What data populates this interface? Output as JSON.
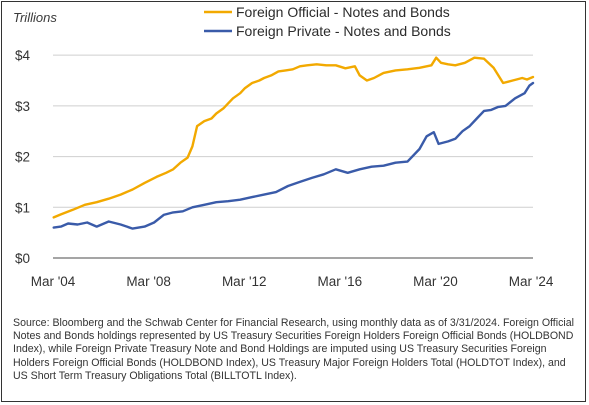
{
  "chart_data": {
    "type": "line",
    "ylabel": "Trillions",
    "ylim": [
      0,
      4.2
    ],
    "y_ticks": [
      {
        "value": 0,
        "label": "$0"
      },
      {
        "value": 1,
        "label": "$1"
      },
      {
        "value": 2,
        "label": "$2"
      },
      {
        "value": 3,
        "label": "$3"
      },
      {
        "value": 4,
        "label": "$4"
      }
    ],
    "xlim": [
      2004.17,
      2024.25
    ],
    "x_ticks": [
      {
        "value": 2004.17,
        "label": "Mar '04"
      },
      {
        "value": 2008.17,
        "label": "Mar '08"
      },
      {
        "value": 2012.17,
        "label": "Mar '12"
      },
      {
        "value": 2016.17,
        "label": "Mar '16"
      },
      {
        "value": 2020.17,
        "label": "Mar '20"
      },
      {
        "value": 2024.17,
        "label": "Mar '24"
      }
    ],
    "grid": "horizontal",
    "legend_position": "top",
    "series": [
      {
        "name": "Foreign Official - Notes and Bonds",
        "color": "#f2a900",
        "points": [
          [
            2004.2,
            0.8
          ],
          [
            2004.5,
            0.86
          ],
          [
            2005.0,
            0.95
          ],
          [
            2005.5,
            1.05
          ],
          [
            2006.0,
            1.1
          ],
          [
            2006.5,
            1.17
          ],
          [
            2007.0,
            1.25
          ],
          [
            2007.5,
            1.35
          ],
          [
            2008.0,
            1.48
          ],
          [
            2008.5,
            1.6
          ],
          [
            2008.9,
            1.68
          ],
          [
            2009.2,
            1.75
          ],
          [
            2009.5,
            1.88
          ],
          [
            2009.8,
            1.98
          ],
          [
            2010.0,
            2.2
          ],
          [
            2010.2,
            2.6
          ],
          [
            2010.5,
            2.7
          ],
          [
            2010.8,
            2.75
          ],
          [
            2011.0,
            2.85
          ],
          [
            2011.3,
            2.95
          ],
          [
            2011.5,
            3.05
          ],
          [
            2011.7,
            3.15
          ],
          [
            2012.0,
            3.25
          ],
          [
            2012.2,
            3.35
          ],
          [
            2012.5,
            3.45
          ],
          [
            2012.8,
            3.5
          ],
          [
            2013.0,
            3.55
          ],
          [
            2013.3,
            3.6
          ],
          [
            2013.6,
            3.68
          ],
          [
            2013.9,
            3.7
          ],
          [
            2014.2,
            3.72
          ],
          [
            2014.5,
            3.78
          ],
          [
            2014.8,
            3.8
          ],
          [
            2015.2,
            3.82
          ],
          [
            2015.6,
            3.8
          ],
          [
            2016.0,
            3.8
          ],
          [
            2016.4,
            3.74
          ],
          [
            2016.8,
            3.78
          ],
          [
            2017.0,
            3.6
          ],
          [
            2017.3,
            3.5
          ],
          [
            2017.6,
            3.55
          ],
          [
            2018.0,
            3.65
          ],
          [
            2018.5,
            3.7
          ],
          [
            2019.0,
            3.72
          ],
          [
            2019.5,
            3.75
          ],
          [
            2020.0,
            3.8
          ],
          [
            2020.2,
            3.95
          ],
          [
            2020.4,
            3.85
          ],
          [
            2020.7,
            3.82
          ],
          [
            2021.0,
            3.8
          ],
          [
            2021.4,
            3.85
          ],
          [
            2021.8,
            3.95
          ],
          [
            2022.2,
            3.93
          ],
          [
            2022.6,
            3.75
          ],
          [
            2023.0,
            3.45
          ],
          [
            2023.4,
            3.5
          ],
          [
            2023.8,
            3.55
          ],
          [
            2024.0,
            3.52
          ],
          [
            2024.25,
            3.57
          ]
        ]
      },
      {
        "name": "Foreign Private - Notes and Bonds",
        "color": "#3a5ba9",
        "points": [
          [
            2004.2,
            0.6
          ],
          [
            2004.5,
            0.62
          ],
          [
            2004.8,
            0.68
          ],
          [
            2005.2,
            0.66
          ],
          [
            2005.6,
            0.7
          ],
          [
            2006.0,
            0.62
          ],
          [
            2006.5,
            0.72
          ],
          [
            2007.0,
            0.66
          ],
          [
            2007.5,
            0.58
          ],
          [
            2008.0,
            0.62
          ],
          [
            2008.4,
            0.7
          ],
          [
            2008.8,
            0.85
          ],
          [
            2009.2,
            0.9
          ],
          [
            2009.6,
            0.92
          ],
          [
            2010.0,
            1.0
          ],
          [
            2010.5,
            1.05
          ],
          [
            2011.0,
            1.1
          ],
          [
            2011.5,
            1.12
          ],
          [
            2012.0,
            1.15
          ],
          [
            2012.5,
            1.2
          ],
          [
            2013.0,
            1.25
          ],
          [
            2013.5,
            1.3
          ],
          [
            2014.0,
            1.42
          ],
          [
            2014.5,
            1.5
          ],
          [
            2015.0,
            1.58
          ],
          [
            2015.5,
            1.65
          ],
          [
            2016.0,
            1.75
          ],
          [
            2016.5,
            1.68
          ],
          [
            2017.0,
            1.75
          ],
          [
            2017.5,
            1.8
          ],
          [
            2018.0,
            1.82
          ],
          [
            2018.5,
            1.88
          ],
          [
            2019.0,
            1.9
          ],
          [
            2019.5,
            2.15
          ],
          [
            2019.8,
            2.4
          ],
          [
            2020.1,
            2.48
          ],
          [
            2020.3,
            2.25
          ],
          [
            2020.7,
            2.3
          ],
          [
            2021.0,
            2.35
          ],
          [
            2021.3,
            2.5
          ],
          [
            2021.6,
            2.6
          ],
          [
            2021.9,
            2.75
          ],
          [
            2022.2,
            2.9
          ],
          [
            2022.5,
            2.92
          ],
          [
            2022.8,
            2.98
          ],
          [
            2023.1,
            3.0
          ],
          [
            2023.5,
            3.15
          ],
          [
            2023.9,
            3.25
          ],
          [
            2024.1,
            3.4
          ],
          [
            2024.25,
            3.45
          ]
        ]
      }
    ]
  },
  "source_note": "Source: Bloomberg and the Schwab Center for Financial Research, using monthly data as of 3/31/2024. Foreign Official Notes and Bonds holdings represented by US Treasury Securities Foreign Holders Foreign Official Bonds (HOLDBOND Index), while Foreign Private Treasury Note and Bond Holdings are imputed using US Treasury Securities Foreign Holders Foreign Official Bonds (HOLDBOND Index), US Treasury Major Foreign Holders Total (HOLDTOT Index), and US Short Term Treasury Obligations Total (BILLTOTL Index)."
}
